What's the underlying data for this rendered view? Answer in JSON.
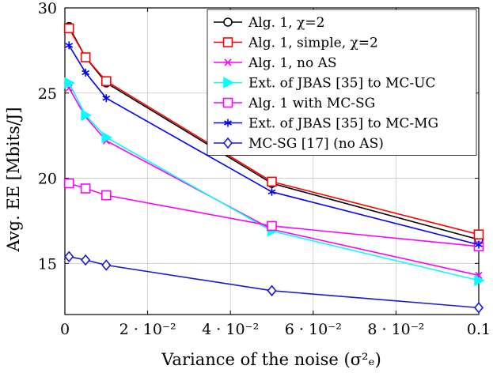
{
  "chart_data": {
    "type": "line",
    "xlabel": "Variance of the noise (σ²ₑ)",
    "ylabel": "Avg. EE [Mbits/J]",
    "xlim": [
      0,
      0.1
    ],
    "ylim": [
      12,
      30
    ],
    "grid": true,
    "legend_position": "top-right",
    "x_ticks": [
      {
        "value": 0,
        "label": "0"
      },
      {
        "value": 0.02,
        "label": "2 · 10⁻²"
      },
      {
        "value": 0.04,
        "label": "4 · 10⁻²"
      },
      {
        "value": 0.06,
        "label": "6 · 10⁻²"
      },
      {
        "value": 0.08,
        "label": "8 · 10⁻²"
      },
      {
        "value": 0.1,
        "label": "0.1"
      }
    ],
    "y_ticks": [
      {
        "value": 15,
        "label": "15"
      },
      {
        "value": 20,
        "label": "20"
      },
      {
        "value": 25,
        "label": "25"
      },
      {
        "value": 30,
        "label": "30"
      }
    ],
    "x": [
      0.001,
      0.005,
      0.01,
      0.05,
      0.1
    ],
    "series": [
      {
        "name": "Alg. 1, χ=2",
        "color": "#000000",
        "marker": "circle",
        "values": [
          28.9,
          27.1,
          25.6,
          19.7,
          16.4
        ]
      },
      {
        "name": "Alg. 1, simple, χ=2",
        "color": "#ff0000",
        "marker": "square",
        "values": [
          28.8,
          27.1,
          25.7,
          19.8,
          16.7
        ]
      },
      {
        "name": "Alg. 1, no AS",
        "color": "#ff00ff",
        "marker": "x",
        "values": [
          25.3,
          23.6,
          22.2,
          17.0,
          14.3
        ]
      },
      {
        "name": "Ext. of JBAS [35] to MC-UC",
        "color": "#00ffff",
        "marker": "triangle-right",
        "values": [
          25.6,
          23.7,
          22.4,
          16.9,
          14.0
        ]
      },
      {
        "name": "Alg. 1 with MC-SG",
        "color": "#ff00ff",
        "marker": "square",
        "values": [
          19.7,
          19.4,
          19.0,
          17.2,
          16.0
        ]
      },
      {
        "name": "Ext. of JBAS [35] to MC-MG",
        "color": "#0000ff",
        "marker": "asterisk",
        "values": [
          27.8,
          26.2,
          24.7,
          19.2,
          16.1
        ]
      },
      {
        "name": "MC-SG [17] (no AS)",
        "color": "#1a1acc",
        "marker": "diamond",
        "values": [
          15.4,
          15.2,
          14.9,
          13.4,
          12.4
        ]
      }
    ]
  }
}
